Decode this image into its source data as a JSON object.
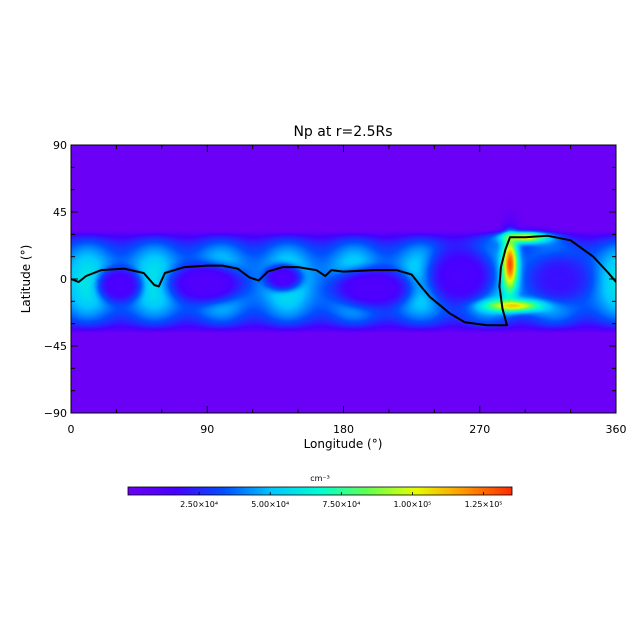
{
  "chart_data": {
    "type": "heatmap",
    "title": "Np at r=2.5Rs",
    "xlabel": "Longitude (°)",
    "ylabel": "Latitude (°)",
    "xlim": [
      0,
      360
    ],
    "ylim": [
      -90,
      90
    ],
    "x_ticks": [
      0,
      90,
      180,
      270,
      360
    ],
    "y_ticks": [
      -90,
      -45,
      0,
      45,
      90
    ],
    "x_tick_labels": [
      "0",
      "90",
      "180",
      "270",
      "360"
    ],
    "y_tick_labels": [
      "−90",
      "−45",
      "0",
      "45",
      "90"
    ],
    "colorbar": {
      "unit_label": "cm⁻³",
      "range": [
        0,
        135000.0
      ],
      "ticks": [
        25000,
        50000,
        75000,
        100000,
        125000
      ],
      "tick_labels": [
        "2.50×10⁴",
        "5.00×10⁴",
        "7.50×10⁴",
        "1.00×10⁵",
        "1.25×10⁵"
      ],
      "colormap": [
        "#6a00f5",
        "#4800ff",
        "#0050ff",
        "#00c8ff",
        "#00ffd2",
        "#64ff50",
        "#e6ff00",
        "#ff9600",
        "#ff2a00"
      ]
    },
    "background_color": "#6a00f5",
    "belt": {
      "center_lat": -2,
      "half_width_lat": 34,
      "peak_value": 60000
    },
    "cells": [
      {
        "lon": 32,
        "lat": -4,
        "rlon": 16,
        "rlat": 13,
        "value": 15000
      },
      {
        "lon": 90,
        "lat": -3,
        "rlon": 28,
        "rlat": 15,
        "value": 12000
      },
      {
        "lon": 140,
        "lat": 1,
        "rlon": 14,
        "rlat": 10,
        "value": 15000
      },
      {
        "lon": 198,
        "lat": -6,
        "rlon": 30,
        "rlat": 15,
        "value": 13000
      },
      {
        "lon": 258,
        "lat": 2,
        "rlon": 26,
        "rlat": 22,
        "value": 15000
      },
      {
        "lon": 322,
        "lat": 0,
        "rlon": 24,
        "rlat": 20,
        "value": 20000
      }
    ],
    "hotspots": [
      {
        "lon": 290,
        "lat": 10,
        "rlon": 5,
        "rlat": 18,
        "value": 130000
      },
      {
        "lon": 292,
        "lat": -18,
        "rlon": 18,
        "rlat": 4,
        "value": 110000
      },
      {
        "lon": 300,
        "lat": 28,
        "rlon": 16,
        "rlat": 4,
        "value": 105000
      }
    ],
    "contour": {
      "color": "#000000",
      "segments": [
        [
          [
            0,
            0
          ],
          [
            5,
            -2
          ],
          [
            10,
            2
          ],
          [
            20,
            6
          ],
          [
            35,
            7
          ],
          [
            48,
            4
          ],
          [
            55,
            -4
          ],
          [
            58,
            -5
          ],
          [
            62,
            4
          ],
          [
            75,
            8
          ],
          [
            90,
            9
          ],
          [
            100,
            9
          ],
          [
            110,
            7
          ],
          [
            118,
            1
          ],
          [
            124,
            -1
          ],
          [
            130,
            5
          ],
          [
            140,
            8
          ],
          [
            150,
            8
          ],
          [
            162,
            6
          ],
          [
            168,
            2
          ],
          [
            172,
            6
          ],
          [
            180,
            5
          ],
          [
            200,
            6
          ],
          [
            215,
            6
          ],
          [
            225,
            3
          ],
          [
            232,
            -6
          ],
          [
            237,
            -12
          ],
          [
            243,
            -17
          ],
          [
            250,
            -23
          ],
          [
            260,
            -29
          ],
          [
            275,
            -31
          ],
          [
            288,
            -31
          ],
          [
            285,
            -20
          ],
          [
            283,
            -5
          ],
          [
            284,
            8
          ],
          [
            287,
            20
          ],
          [
            290,
            28
          ],
          [
            300,
            28
          ],
          [
            315,
            29
          ],
          [
            330,
            26
          ],
          [
            345,
            15
          ],
          [
            355,
            4
          ],
          [
            360,
            -2
          ]
        ]
      ]
    }
  }
}
